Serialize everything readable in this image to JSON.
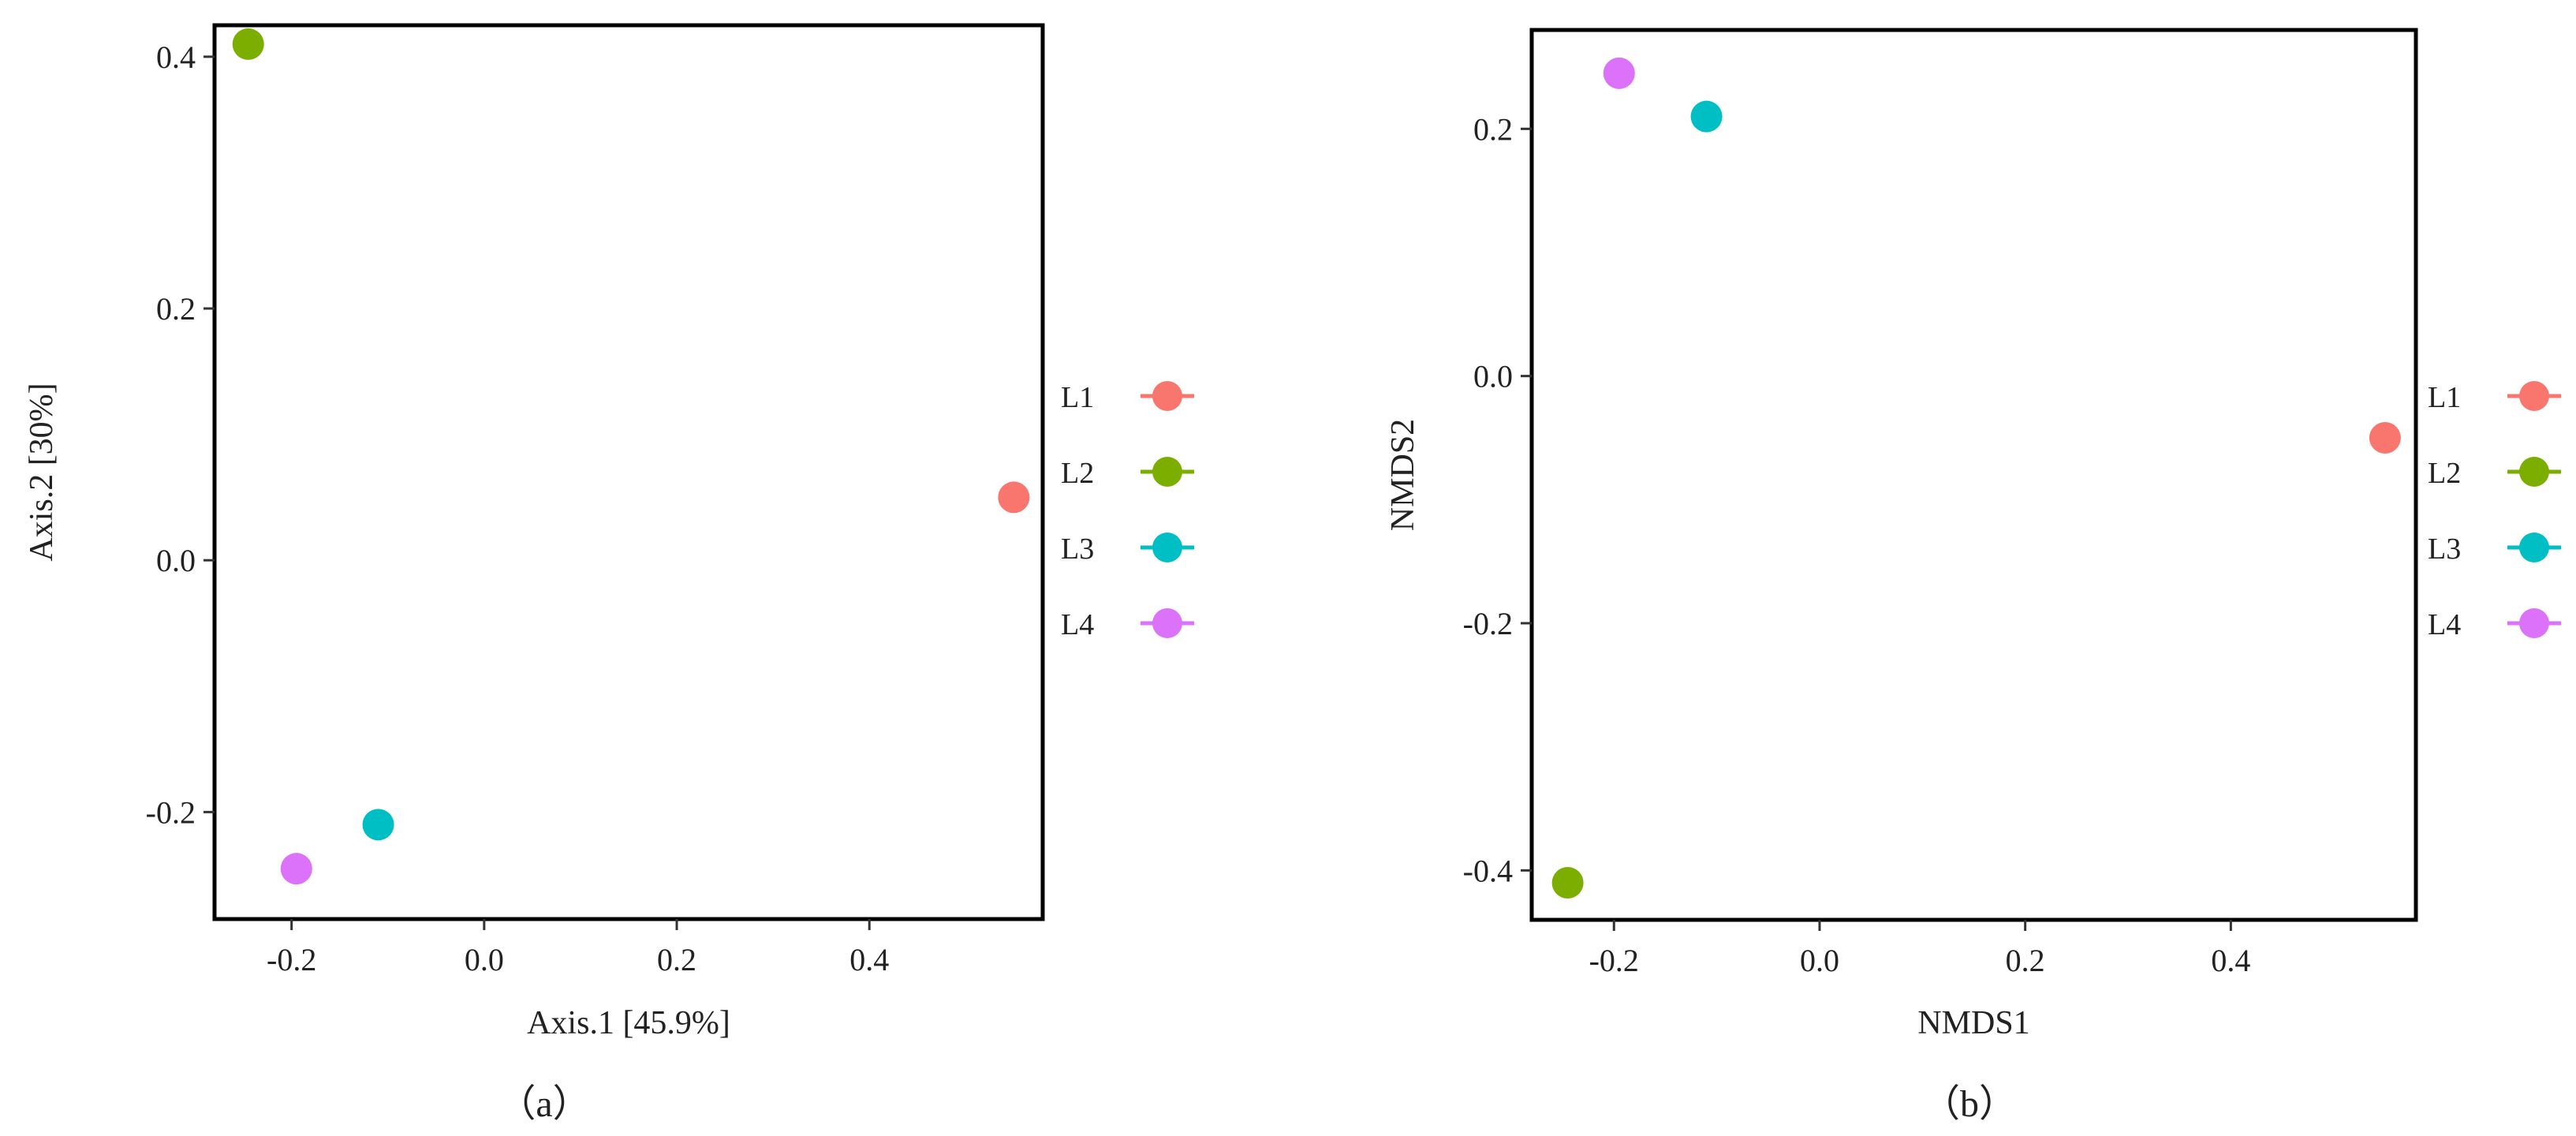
{
  "chart_data": [
    {
      "type": "scatter",
      "caption": "（a）",
      "xlabel": "Axis.1   [45.9%]",
      "ylabel": "Axis.2   [30%]",
      "xlim": [
        -0.28,
        0.58
      ],
      "ylim": [
        -0.285,
        0.425
      ],
      "x_ticks": [
        -0.2,
        0.0,
        0.2,
        0.4
      ],
      "x_tick_labels": [
        "-0.2",
        "0.0",
        "0.2",
        "0.4"
      ],
      "y_ticks": [
        -0.2,
        0.0,
        0.2,
        0.4
      ],
      "y_tick_labels": [
        "-0.2",
        "0.0",
        "0.2",
        "0.4"
      ],
      "grid": false,
      "legend_position": "right",
      "series": [
        {
          "name": "L1",
          "color": "#F8766D",
          "points": [
            {
              "x": 0.55,
              "y": 0.05
            }
          ]
        },
        {
          "name": "L2",
          "color": "#7CAE00",
          "points": [
            {
              "x": -0.245,
              "y": 0.41
            }
          ]
        },
        {
          "name": "L3",
          "color": "#00BFC4",
          "points": [
            {
              "x": -0.11,
              "y": -0.21
            }
          ]
        },
        {
          "name": "L4",
          "color": "#DC71FA",
          "points": [
            {
              "x": -0.195,
              "y": -0.245
            }
          ]
        }
      ]
    },
    {
      "type": "scatter",
      "caption": "（b）",
      "xlabel": "NMDS1",
      "ylabel": "NMDS2",
      "xlim": [
        -0.28,
        0.58
      ],
      "ylim": [
        -0.44,
        0.28
      ],
      "x_ticks": [
        -0.2,
        0.0,
        0.2,
        0.4
      ],
      "x_tick_labels": [
        "-0.2",
        "0.0",
        "0.2",
        "0.4"
      ],
      "y_ticks": [
        -0.4,
        -0.2,
        0.0,
        0.2
      ],
      "y_tick_labels": [
        "-0.4",
        "-0.2",
        "0.0",
        "0.2"
      ],
      "grid": false,
      "legend_position": "right",
      "series": [
        {
          "name": "L1",
          "color": "#F8766D",
          "points": [
            {
              "x": 0.55,
              "y": -0.05
            }
          ]
        },
        {
          "name": "L2",
          "color": "#7CAE00",
          "points": [
            {
              "x": -0.245,
              "y": -0.41
            }
          ]
        },
        {
          "name": "L3",
          "color": "#00BFC4",
          "points": [
            {
              "x": -0.11,
              "y": 0.21
            }
          ]
        },
        {
          "name": "L4",
          "color": "#DC71FA",
          "points": [
            {
              "x": -0.195,
              "y": 0.245
            }
          ]
        }
      ]
    }
  ]
}
